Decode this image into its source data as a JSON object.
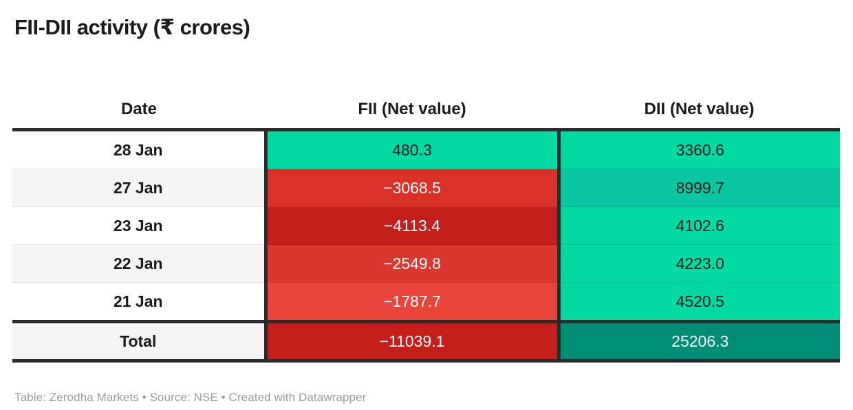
{
  "page": {
    "title": "FII-DII activity (₹ crores)",
    "footer": "Table: Zerodha Markets • Source: NSE • Created with Datawrapper"
  },
  "table": {
    "columns": [
      {
        "label": "Date"
      },
      {
        "label": "FII (Net value)"
      },
      {
        "label": "DII (Net value)"
      }
    ],
    "rows": [
      {
        "date": "28 Jan",
        "is_total": false,
        "fii": {
          "value": "480.3",
          "bg": "#03D9A3",
          "text": "#1B1B1B"
        },
        "dii": {
          "value": "3360.6",
          "bg": "#03D9A3",
          "text": "#1B1B1B"
        }
      },
      {
        "date": "27 Jan",
        "is_total": false,
        "fii": {
          "value": "−3068.5",
          "bg": "#D93228",
          "text": "#FFFFFF"
        },
        "dii": {
          "value": "8999.7",
          "bg": "#0BC6A2",
          "text": "#1B1B1B"
        }
      },
      {
        "date": "23 Jan",
        "is_total": false,
        "fii": {
          "value": "−4113.4",
          "bg": "#C41F1B",
          "text": "#FFFFFF"
        },
        "dii": {
          "value": "4102.6",
          "bg": "#03D9A3",
          "text": "#1B1B1B"
        }
      },
      {
        "date": "22 Jan",
        "is_total": false,
        "fii": {
          "value": "−2549.8",
          "bg": "#DC372C",
          "text": "#FFFFFF"
        },
        "dii": {
          "value": "4223.0",
          "bg": "#03D9A3",
          "text": "#1B1B1B"
        }
      },
      {
        "date": "21 Jan",
        "is_total": false,
        "fii": {
          "value": "−1787.7",
          "bg": "#E94439",
          "text": "#FFFFFF"
        },
        "dii": {
          "value": "4520.5",
          "bg": "#03D9A3",
          "text": "#1B1B1B"
        }
      },
      {
        "date": "Total",
        "is_total": true,
        "fii": {
          "value": "−11039.1",
          "bg": "#C41F1B",
          "text": "#FFFFFF"
        },
        "dii": {
          "value": "25206.3",
          "bg": "#008F76",
          "text": "#FFFFFF"
        }
      }
    ]
  },
  "colors": {
    "border_dark": "#2B2B2B",
    "row_alt_bg": "#F4F4F4",
    "positive_green": "#03D9A3",
    "positive_green_dark": "#0BC6A2",
    "positive_green_total": "#008F76",
    "negative_red_light": "#E94439",
    "negative_red": "#D93228",
    "negative_red_dark": "#C41F1B",
    "footer_text": "#9B9B9B"
  },
  "chart_data": {
    "type": "table",
    "title": "FII-DII activity (₹ crores)",
    "columns": [
      "Date",
      "FII (Net value)",
      "DII (Net value)"
    ],
    "rows": [
      {
        "date": "28 Jan",
        "fii_net": 480.3,
        "dii_net": 3360.6
      },
      {
        "date": "27 Jan",
        "fii_net": -3068.5,
        "dii_net": 8999.7
      },
      {
        "date": "23 Jan",
        "fii_net": -4113.4,
        "dii_net": 4102.6
      },
      {
        "date": "22 Jan",
        "fii_net": -2549.8,
        "dii_net": 4223.0
      },
      {
        "date": "21 Jan",
        "fii_net": -1787.7,
        "dii_net": 4520.5
      }
    ],
    "total": {
      "date": "Total",
      "fii_net": -11039.1,
      "dii_net": 25206.3
    },
    "notes": "Heatmap-colored cells: red shades for negative values, green/teal shades for positive values; darker shade indicates larger magnitude.",
    "source": "NSE",
    "credit": "Table: Zerodha Markets • Created with Datawrapper"
  }
}
